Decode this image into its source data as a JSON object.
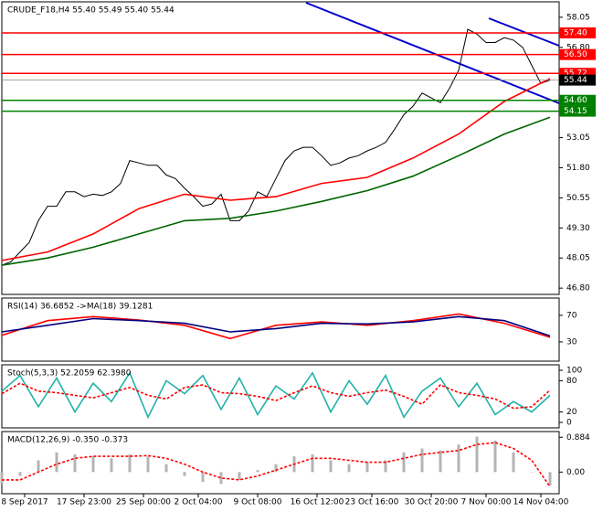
{
  "chart_data": [
    {
      "type": "line",
      "title": "CRUDE_F18,H4  55.40 55.49 55.40 55.44",
      "xlim": [
        0,
        61
      ],
      "ylim": [
        46.54,
        58.69
      ],
      "yticks": [
        58.05,
        {
          "value": 56.8,
          "label": "56.80"
        },
        53.05,
        {
          "value": 51.8,
          "label": "51.80"
        },
        50.55,
        {
          "value": 49.3,
          "label": "49.30"
        },
        48.05,
        {
          "value": 46.8,
          "label": "46.80"
        }
      ],
      "levels": [
        {
          "value": 57.4,
          "label": "57.40"
        },
        {
          "value": 56.5,
          "label": "56.50"
        },
        55.72,
        {
          "value": 54.6,
          "label": "54.60"
        },
        54.15
      ],
      "level_colors": [
        "#ff0000",
        "#ff0000",
        "#ff0000",
        "#008000",
        "#008000"
      ],
      "last_price": 55.44,
      "series": [
        {
          "color": "#000000",
          "type": "line",
          "x": [
            0,
            1,
            2,
            3,
            4,
            5,
            6,
            7,
            8,
            9,
            10,
            11,
            12,
            13,
            14,
            15,
            16,
            17,
            18,
            19,
            20,
            21,
            22,
            23,
            24,
            25,
            26,
            27,
            28,
            29,
            30,
            31,
            32,
            33,
            34,
            35,
            36,
            37,
            38,
            39,
            40,
            41,
            42,
            43,
            44,
            45,
            46,
            47,
            48,
            49,
            50,
            51,
            52,
            53,
            54,
            55,
            56,
            57,
            58,
            59,
            60
          ],
          "values": [
            47.75,
            47.9,
            48.3,
            48.7,
            49.6,
            50.2,
            50.2,
            50.8,
            50.8,
            50.6,
            50.7,
            50.65,
            50.8,
            51.15,
            52.1,
            52.0,
            51.9,
            51.9,
            51.5,
            51.35,
            50.95,
            50.6,
            50.2,
            50.3,
            50.7,
            49.6,
            49.6,
            50.0,
            50.8,
            50.6,
            51.35,
            52.1,
            52.5,
            52.65,
            52.65,
            52.3,
            51.9,
            52.0,
            52.2,
            52.3,
            52.5,
            52.65,
            52.85,
            53.4,
            54.0,
            54.35,
            54.9,
            54.7,
            54.5,
            55.1,
            55.85,
            57.55,
            57.35,
            57.0,
            57.0,
            57.2,
            57.1,
            56.8,
            56.05,
            55.3,
            55.44
          ]
        },
        {
          "color": "#ff0000",
          "type": "line",
          "x": [
            0,
            5,
            10,
            15,
            20,
            25,
            30,
            35,
            40,
            45,
            50,
            55,
            60
          ],
          "values": [
            47.95,
            48.3,
            49.05,
            50.1,
            50.7,
            50.45,
            50.6,
            51.15,
            51.4,
            52.2,
            53.2,
            54.55,
            55.5
          ]
        },
        {
          "color": "#006400",
          "type": "line",
          "x": [
            0,
            5,
            10,
            15,
            20,
            25,
            30,
            35,
            40,
            45,
            50,
            55,
            60
          ],
          "values": [
            47.75,
            48.05,
            48.5,
            49.05,
            49.6,
            49.7,
            50.0,
            50.4,
            50.85,
            51.45,
            52.3,
            53.2,
            53.9
          ]
        }
      ]
    },
    {
      "type": "line",
      "title": "RSI(14) 36.6852 ->MA(18) 39.1281",
      "xlim": [
        0,
        61
      ],
      "ylim": [
        1,
        96
      ],
      "yticks": [
        70,
        30
      ],
      "series": [
        {
          "color": "#ff0000",
          "type": "line",
          "x": [
            0,
            5,
            10,
            15,
            20,
            25,
            30,
            35,
            40,
            45,
            50,
            55,
            60
          ],
          "values": [
            40,
            62,
            68,
            63,
            55,
            35,
            55,
            60,
            55,
            62,
            72,
            58,
            37
          ]
        },
        {
          "color": "#000080",
          "type": "line",
          "x": [
            0,
            5,
            10,
            15,
            20,
            25,
            30,
            35,
            40,
            45,
            50,
            55,
            60
          ],
          "values": [
            45,
            55,
            65,
            62,
            58,
            45,
            50,
            58,
            57,
            60,
            68,
            62,
            39
          ]
        }
      ]
    },
    {
      "type": "line",
      "title": "Stoch(5,3,3) 52.2059 62.3980",
      "xlim": [
        0,
        61
      ],
      "ylim": [
        -10.5,
        110.5
      ],
      "yticks": [
        100,
        80,
        20,
        0
      ],
      "series": [
        {
          "color": "#20b2aa",
          "type": "line",
          "x": [
            0,
            2,
            4,
            6,
            8,
            10,
            12,
            14,
            16,
            18,
            20,
            22,
            24,
            26,
            28,
            30,
            32,
            34,
            36,
            38,
            40,
            42,
            44,
            46,
            48,
            50,
            52,
            54,
            56,
            58,
            60
          ],
          "values": [
            60,
            90,
            30,
            85,
            20,
            75,
            40,
            95,
            10,
            80,
            55,
            90,
            25,
            85,
            15,
            70,
            45,
            95,
            20,
            80,
            35,
            90,
            10,
            60,
            85,
            30,
            75,
            15,
            40,
            20,
            52
          ]
        },
        {
          "color": "#ff0000",
          "type": "line",
          "dash": true,
          "x": [
            0,
            2,
            4,
            6,
            8,
            10,
            12,
            14,
            16,
            18,
            20,
            22,
            24,
            26,
            28,
            30,
            32,
            34,
            36,
            38,
            40,
            42,
            44,
            46,
            48,
            50,
            52,
            54,
            56,
            58,
            60
          ],
          "values": [
            55,
            75,
            60,
            57,
            52,
            47,
            57,
            67,
            52,
            45,
            67,
            72,
            57,
            55,
            50,
            42,
            57,
            70,
            57,
            50,
            57,
            62,
            50,
            35,
            72,
            57,
            52,
            45,
            27,
            30,
            62
          ]
        }
      ]
    },
    {
      "type": "line",
      "title": "MACD(12,26,9) -0.350 -0.373",
      "xlim": [
        0,
        61
      ],
      "ylim": [
        -0.55,
        1.03
      ],
      "yticks": [
        0.884,
        {
          "value": 0,
          "label": "0.00"
        }
      ],
      "xticks": [
        {
          "value": 2.5,
          "label": "8 Sep 2017"
        },
        {
          "value": 9,
          "label": "17 Sep 23:00"
        },
        {
          "value": 15.5,
          "label": "25 Sep 00:00"
        },
        {
          "value": 21.5,
          "label": "2 Oct 04:00"
        },
        {
          "value": 28,
          "label": "9 Oct 08:00"
        },
        {
          "value": 34.5,
          "label": "16 Oct 12:00"
        },
        {
          "value": 40.5,
          "label": "23 Oct 16:00"
        },
        {
          "value": 47,
          "label": "30 Oct 20:00"
        },
        {
          "value": 53,
          "label": "7 Nov 00:00"
        },
        {
          "value": 59,
          "label": "14 Nov 04:00"
        }
      ],
      "series": [
        {
          "color": "#b4b4b4",
          "type": "bar",
          "x": [
            0,
            2,
            4,
            6,
            8,
            10,
            12,
            14,
            16,
            18,
            20,
            22,
            24,
            26,
            28,
            30,
            32,
            34,
            36,
            38,
            40,
            42,
            44,
            46,
            48,
            50,
            52,
            54,
            56,
            58,
            60
          ],
          "values": [
            -0.3,
            -0.1,
            0.3,
            0.5,
            0.45,
            0.4,
            0.35,
            0.45,
            0.4,
            0.2,
            -0.1,
            -0.25,
            -0.3,
            -0.2,
            0.05,
            0.2,
            0.4,
            0.45,
            0.3,
            0.2,
            0.25,
            0.3,
            0.5,
            0.6,
            0.55,
            0.7,
            0.9,
            0.8,
            0.5,
            0.0,
            -0.35
          ]
        },
        {
          "color": "#ff0000",
          "type": "line",
          "dash": true,
          "x": [
            0,
            2,
            4,
            6,
            8,
            10,
            12,
            14,
            16,
            18,
            20,
            22,
            24,
            26,
            28,
            30,
            32,
            34,
            36,
            38,
            40,
            42,
            44,
            46,
            48,
            50,
            52,
            54,
            56,
            58,
            60
          ],
          "values": [
            -0.2,
            -0.2,
            0.0,
            0.2,
            0.35,
            0.4,
            0.4,
            0.4,
            0.42,
            0.35,
            0.2,
            0.0,
            -0.15,
            -0.2,
            -0.1,
            0.05,
            0.2,
            0.35,
            0.35,
            0.3,
            0.25,
            0.25,
            0.35,
            0.45,
            0.5,
            0.55,
            0.7,
            0.75,
            0.6,
            0.3,
            -0.373
          ]
        }
      ]
    }
  ]
}
